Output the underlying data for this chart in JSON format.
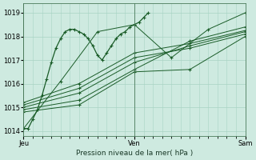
{
  "xlabel": "Pression niveau de la mer( hPa )",
  "ylim": [
    1013.8,
    1019.4
  ],
  "yticks": [
    1014,
    1015,
    1016,
    1017,
    1018,
    1019
  ],
  "xlim": [
    0,
    48
  ],
  "background_color": "#ceeae0",
  "grid_color": "#a8d4c4",
  "line_color": "#1a5c28",
  "day_labels": [
    "Jeu",
    "Ven",
    "Sam"
  ],
  "day_positions": [
    0,
    24,
    48
  ],
  "xtick_minor_positions": [
    2,
    4,
    6,
    8,
    10,
    12,
    14,
    16,
    18,
    20,
    22,
    26,
    28,
    30,
    32,
    34,
    36,
    38,
    40,
    42,
    44,
    46
  ],
  "series": [
    {
      "x": [
        0,
        1,
        2,
        3,
        4,
        5,
        6,
        7,
        8,
        9,
        10,
        11,
        12,
        13,
        14,
        15,
        16,
        17,
        18,
        19,
        20,
        21,
        22,
        23,
        24,
        25,
        26,
        27
      ],
      "y": [
        1014.1,
        1014.1,
        1014.5,
        1014.9,
        1015.5,
        1016.2,
        1016.9,
        1017.5,
        1017.9,
        1018.2,
        1018.3,
        1018.3,
        1018.2,
        1018.1,
        1017.9,
        1017.6,
        1017.2,
        1017.0,
        1017.3,
        1017.6,
        1017.9,
        1018.1,
        1018.2,
        1018.4,
        1018.5,
        1018.6,
        1018.8,
        1019.0
      ],
      "sparse": false
    },
    {
      "x": [
        0,
        12,
        24,
        36,
        48
      ],
      "y": [
        1014.9,
        1015.3,
        1016.6,
        1017.8,
        1018.4
      ],
      "sparse": true
    },
    {
      "x": [
        0,
        12,
        24,
        36,
        48
      ],
      "y": [
        1015.0,
        1015.6,
        1016.9,
        1017.6,
        1018.2
      ],
      "sparse": true
    },
    {
      "x": [
        0,
        12,
        24,
        36,
        48
      ],
      "y": [
        1015.1,
        1015.8,
        1017.1,
        1017.5,
        1018.1
      ],
      "sparse": true
    },
    {
      "x": [
        0,
        12,
        24,
        36,
        48
      ],
      "y": [
        1015.2,
        1016.0,
        1017.3,
        1017.7,
        1018.25
      ],
      "sparse": true
    },
    {
      "x": [
        0,
        12,
        24,
        36,
        48
      ],
      "y": [
        1014.8,
        1015.1,
        1016.5,
        1016.6,
        1018.0
      ],
      "sparse": true
    },
    {
      "x": [
        0,
        8,
        16,
        24,
        32,
        40,
        48
      ],
      "y": [
        1014.1,
        1016.1,
        1018.2,
        1018.5,
        1017.1,
        1018.3,
        1019.0
      ],
      "sparse": true
    }
  ]
}
